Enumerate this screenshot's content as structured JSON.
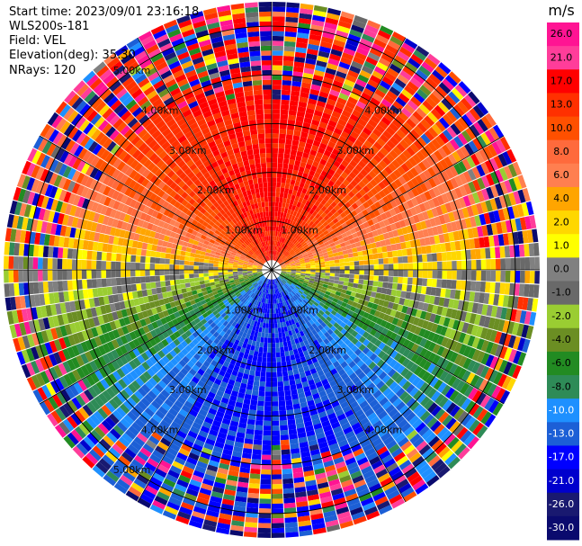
{
  "header": {
    "start_time": "Start time: 2023/09/01 23:16:18",
    "instrument": "WLS200s-181",
    "field": "Field: VEL",
    "elevation": "Elevation(deg): 35.30",
    "nrays": "NRays: 120"
  },
  "chart_data": {
    "type": "polar-ppi",
    "title": "",
    "field": "VEL",
    "units": "m/s",
    "n_rays": 120,
    "elevation_deg": 35.3,
    "max_range_km": 5.5,
    "range_rings_km": [
      1,
      2,
      3,
      4,
      5
    ],
    "ring_labels": [
      "1.00km",
      "2.00km",
      "3.00km",
      "4.00km",
      "5.00km"
    ],
    "colorbar": {
      "ticks": [
        "26.0",
        "21.0",
        "17.0",
        "13.0",
        "10.0",
        "8.0",
        "6.0",
        "4.0",
        "2.0",
        "1.0",
        "0.0",
        "-1.0",
        "-2.0",
        "-4.0",
        "-6.0",
        "-8.0",
        "-10.0",
        "-13.0",
        "-17.0",
        "-21.0",
        "-26.0",
        "-30.0"
      ],
      "colors": [
        "#ff1493",
        "#ff3d9a",
        "#ff0000",
        "#ff3000",
        "#ff5000",
        "#ff6a3c",
        "#ff7f50",
        "#ffa500",
        "#ffd700",
        "#ffff00",
        "#808080",
        "#696969",
        "#9acd32",
        "#6b8e23",
        "#228b22",
        "#2e8b57",
        "#1e90ff",
        "#1c5fd6",
        "#0000ff",
        "#0000cd",
        "#191970",
        "#0a0a6e"
      ]
    }
  }
}
